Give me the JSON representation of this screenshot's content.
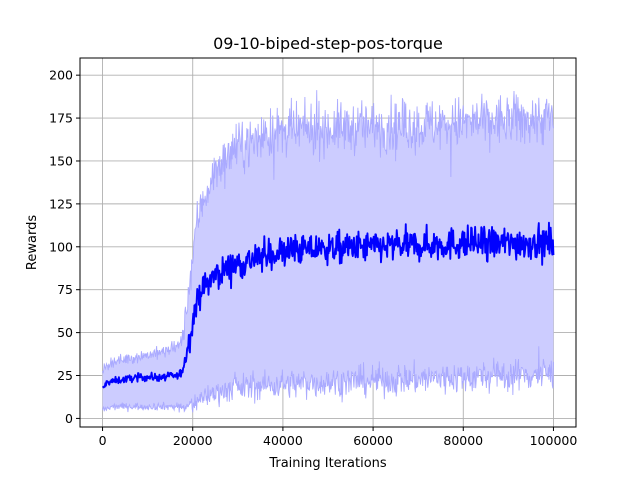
{
  "chart_data": {
    "type": "line",
    "title": "09-10-biped-step-pos-torque",
    "xlabel": "Training Iterations",
    "ylabel": "Rewards",
    "xlim": [
      -5000,
      105000
    ],
    "ylim": [
      -5,
      210
    ],
    "xticks": [
      0,
      20000,
      40000,
      60000,
      80000,
      100000
    ],
    "xtick_labels": [
      "0",
      "20000",
      "40000",
      "60000",
      "80000",
      "100000"
    ],
    "yticks": [
      0,
      25,
      50,
      75,
      100,
      125,
      150,
      175,
      200
    ],
    "ytick_labels": [
      "0",
      "25",
      "50",
      "75",
      "100",
      "125",
      "150",
      "175",
      "200"
    ],
    "grid": true,
    "line_color": "#0000ff",
    "band_color": "#ccccff",
    "band_edge_color": "#aaaaff",
    "x_range": [
      0,
      100000
    ],
    "series": [
      {
        "name": "mean",
        "role": "mean",
        "points": [
          [
            0,
            17
          ],
          [
            1000,
            21
          ],
          [
            3000,
            22
          ],
          [
            8000,
            24
          ],
          [
            13000,
            24
          ],
          [
            17000,
            25
          ],
          [
            18000,
            30
          ],
          [
            19000,
            42
          ],
          [
            20000,
            58
          ],
          [
            21000,
            68
          ],
          [
            22000,
            75
          ],
          [
            24000,
            81
          ],
          [
            26000,
            85
          ],
          [
            28000,
            88
          ],
          [
            30000,
            90
          ],
          [
            34000,
            93
          ],
          [
            38000,
            96
          ],
          [
            42000,
            98
          ],
          [
            50000,
            99
          ],
          [
            60000,
            100
          ],
          [
            70000,
            101
          ],
          [
            80000,
            102
          ],
          [
            90000,
            102
          ],
          [
            100000,
            103
          ]
        ],
        "noise": [
          [
            0,
            1.0
          ],
          [
            17000,
            1.2
          ],
          [
            20000,
            3.5
          ],
          [
            30000,
            4.5
          ],
          [
            50000,
            4.5
          ],
          [
            100000,
            5.0
          ]
        ]
      },
      {
        "name": "upper",
        "role": "upper",
        "points": [
          [
            0,
            28
          ],
          [
            2000,
            33
          ],
          [
            8000,
            36
          ],
          [
            14000,
            39
          ],
          [
            17000,
            42
          ],
          [
            18000,
            50
          ],
          [
            19000,
            72
          ],
          [
            20000,
            95
          ],
          [
            21000,
            115
          ],
          [
            22000,
            125
          ],
          [
            24000,
            138
          ],
          [
            26000,
            148
          ],
          [
            30000,
            158
          ],
          [
            36000,
            165
          ],
          [
            44000,
            168
          ],
          [
            60000,
            170
          ],
          [
            80000,
            172
          ],
          [
            100000,
            175
          ]
        ],
        "noise": [
          [
            0,
            1.5
          ],
          [
            17000,
            2.0
          ],
          [
            20000,
            6.0
          ],
          [
            30000,
            7.0
          ],
          [
            50000,
            7.5
          ],
          [
            100000,
            8.0
          ]
        ]
      },
      {
        "name": "lower",
        "role": "lower",
        "points": [
          [
            0,
            5
          ],
          [
            3000,
            7
          ],
          [
            10000,
            7
          ],
          [
            17000,
            7
          ],
          [
            18000,
            6
          ],
          [
            20000,
            8
          ],
          [
            22000,
            12
          ],
          [
            26000,
            16
          ],
          [
            30000,
            18
          ],
          [
            40000,
            20
          ],
          [
            60000,
            22
          ],
          [
            80000,
            24
          ],
          [
            100000,
            26
          ]
        ],
        "noise": [
          [
            0,
            1.0
          ],
          [
            17000,
            1.2
          ],
          [
            20000,
            3.0
          ],
          [
            30000,
            4.0
          ],
          [
            50000,
            4.5
          ],
          [
            100000,
            5.0
          ]
        ]
      }
    ]
  }
}
